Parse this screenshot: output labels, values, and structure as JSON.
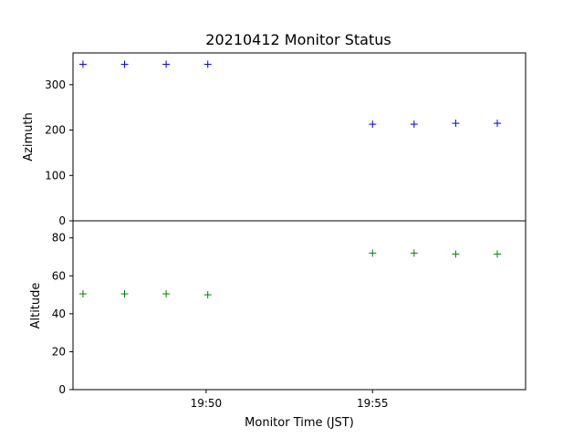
{
  "chart_data": {
    "type": "scatter",
    "title": "20210412 Monitor Status",
    "xlabel": "Monitor Time (JST)",
    "x_unit": "minutes after 19:00",
    "xlim": [
      46.0,
      59.6
    ],
    "x_ticks": [
      {
        "value": 50,
        "label": "19:50"
      },
      {
        "value": 55,
        "label": "19:55"
      }
    ],
    "marker": "+",
    "x": [
      46.3,
      47.55,
      48.8,
      50.05,
      55.0,
      56.25,
      57.5,
      58.75
    ],
    "panels": [
      {
        "ylabel": "Azimuth",
        "ylim": [
          0,
          370
        ],
        "y_ticks": [
          0,
          100,
          200,
          300
        ],
        "series": [
          {
            "color": "#0000ff",
            "values": [
              345,
              345,
              345,
              345,
              213,
              213,
              215,
              215
            ]
          }
        ]
      },
      {
        "ylabel": "Altitude",
        "ylim": [
          0,
          89
        ],
        "y_ticks": [
          0,
          20,
          40,
          60,
          80
        ],
        "series": [
          {
            "color": "#008000",
            "values": [
              50.5,
              50.5,
              50.5,
              50.0,
              72.0,
              72.0,
              71.5,
              71.5
            ]
          }
        ]
      }
    ]
  }
}
